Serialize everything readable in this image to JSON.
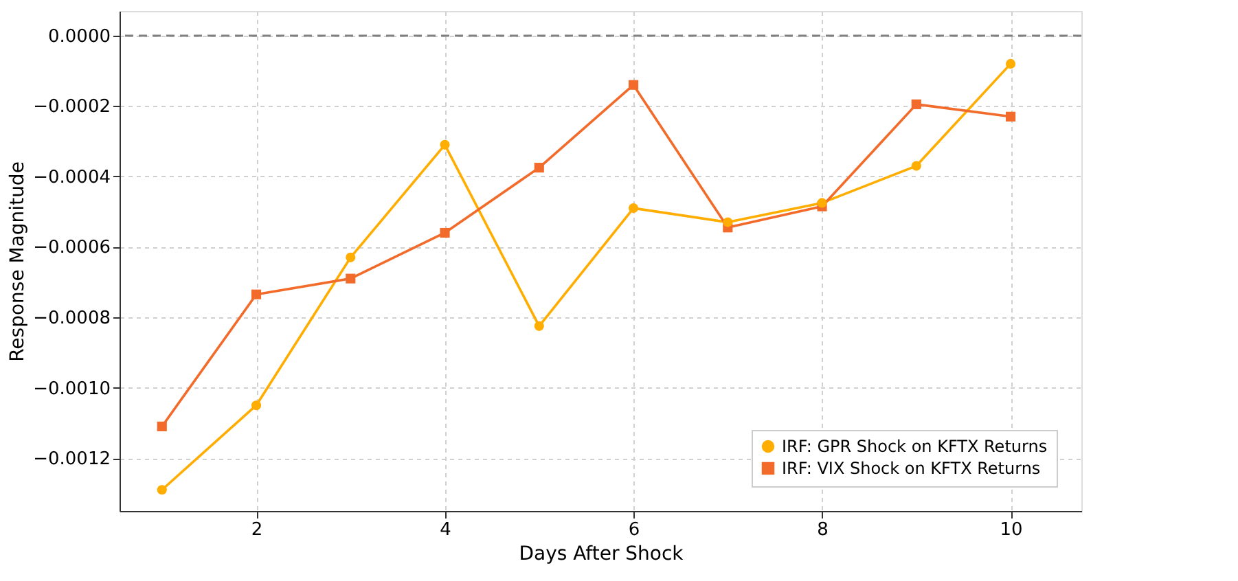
{
  "chart_data": {
    "type": "line",
    "xlabel": "Days After Shock",
    "ylabel": "Response Magnitude",
    "x": [
      1,
      2,
      3,
      4,
      5,
      6,
      7,
      8,
      9,
      10
    ],
    "series": [
      {
        "name": "IRF: GPR Shock on KFTX Returns",
        "color": "#ffad00",
        "marker": "circle",
        "values": [
          -0.00129,
          -0.00105,
          -0.00063,
          -0.00031,
          -0.000825,
          -0.00049,
          -0.00053,
          -0.000475,
          -0.00037,
          -8e-05
        ]
      },
      {
        "name": "IRF: VIX Shock on KFTX Returns",
        "color": "#f26b2a",
        "marker": "square",
        "values": [
          -0.00111,
          -0.000735,
          -0.00069,
          -0.00056,
          -0.000375,
          -0.00014,
          -0.000545,
          -0.000485,
          -0.000195,
          -0.00023
        ]
      }
    ],
    "xlim": [
      0.55,
      10.75
    ],
    "xticks": [
      2,
      4,
      6,
      8,
      10
    ],
    "ylim": [
      -0.00135,
      7e-05
    ],
    "yticks": [
      {
        "value": 0,
        "label": "0.0000"
      },
      {
        "value": -0.0002,
        "label": "−0.0002"
      },
      {
        "value": -0.0004,
        "label": "−0.0004"
      },
      {
        "value": -0.0006,
        "label": "−0.0006"
      },
      {
        "value": -0.0008,
        "label": "−0.0008"
      },
      {
        "value": -0.001,
        "label": "−0.0010"
      },
      {
        "value": -0.0012,
        "label": "−0.0012"
      }
    ],
    "ref_lines": [
      {
        "axis": "y",
        "value": 0,
        "color": "#808080",
        "line_style": "dashed"
      }
    ],
    "grid": true,
    "legend": "bottom right",
    "line_style": "solid"
  }
}
